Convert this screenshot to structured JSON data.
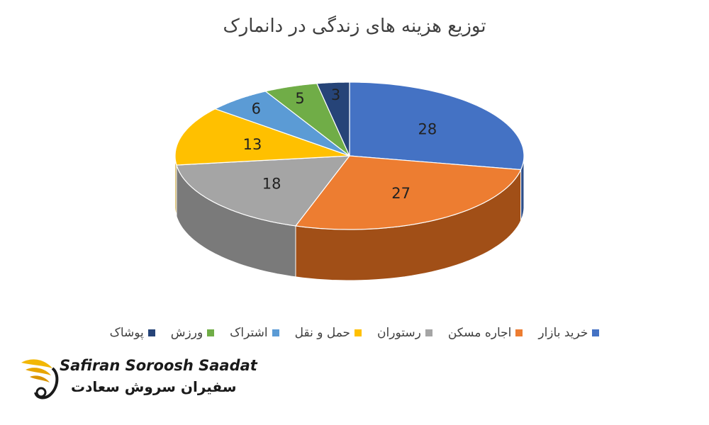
{
  "chart_data": {
    "type": "pie",
    "title": "توزیع هزینه های زندگی در دانمارک",
    "slices": [
      {
        "label": "خرید بازار",
        "value": 28,
        "color": "#4472C4",
        "side": "#2E4F8A"
      },
      {
        "label": "اجاره مسکن",
        "value": 27,
        "color": "#ED7D31",
        "side": "#A14F17"
      },
      {
        "label": "رستوران",
        "value": 18,
        "color": "#A5A5A5",
        "side": "#7A7A7A"
      },
      {
        "label": "حمل و نقل",
        "value": 13,
        "color": "#FFC000",
        "side": "#B78A00"
      },
      {
        "label": "اشتراک",
        "value": 6,
        "color": "#5B9BD5",
        "side": "#3A6E9E"
      },
      {
        "label": "ورزش",
        "value": 5,
        "color": "#70AD47",
        "side": "#4C7B2E"
      },
      {
        "label": "پوشاک",
        "value": 3,
        "color": "#264478",
        "side": "#172A4A"
      }
    ],
    "legend_position": "bottom",
    "data_labels": true
  },
  "brand": {
    "name": "Safiran Soroosh Saadat",
    "name_fa": "سفیران سروش سعادت"
  }
}
